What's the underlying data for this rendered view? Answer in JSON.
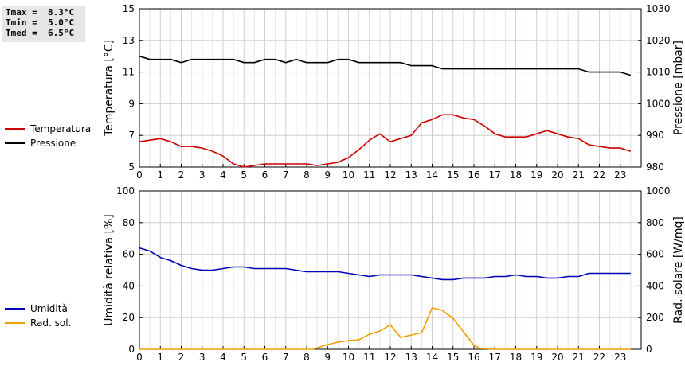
{
  "stats": {
    "tmax": "Tmax =  8.3°C",
    "tmin": "Tmin =  5.0°C",
    "tmed": "Tmed =  6.5°C"
  },
  "legend_top": [
    {
      "label": "Temperatura",
      "color": "#cc0000"
    },
    {
      "label": "Pressione",
      "color": "#000000"
    }
  ],
  "legend_bottom": [
    {
      "label": "Umidità",
      "color": "#0000bb"
    },
    {
      "label": "Rad. sol.",
      "color": "#f0a000"
    }
  ],
  "chart_data": [
    {
      "type": "line",
      "x_ticks": [
        "0",
        "1",
        "2",
        "3",
        "4",
        "5",
        "6",
        "7",
        "8",
        "9",
        "10",
        "11",
        "12",
        "13",
        "14",
        "15",
        "16",
        "17",
        "18",
        "19",
        "20",
        "21",
        "22",
        "23"
      ],
      "xlim": [
        0,
        24
      ],
      "ylabel": "Temperatura [°C]",
      "ylim": [
        5,
        15
      ],
      "y_ticks": [
        "5",
        "7",
        "9",
        "11",
        "13",
        "15"
      ],
      "y2label": "Pressione [mbar]",
      "y2lim": [
        980,
        1030
      ],
      "y2_ticks": [
        "980",
        "990",
        "1000",
        "1010",
        "1020",
        "1030"
      ],
      "grid": true,
      "series": [
        {
          "name": "Temperatura",
          "axis": "left",
          "color": "#cc0000",
          "x": [
            0,
            0.5,
            1,
            1.5,
            2,
            2.5,
            3,
            3.5,
            4,
            4.5,
            5,
            5.5,
            6,
            6.5,
            7,
            7.5,
            8,
            8.5,
            9,
            9.5,
            10,
            10.5,
            11,
            11.5,
            12,
            12.5,
            13,
            13.5,
            14,
            14.5,
            15,
            15.5,
            16,
            16.5,
            17,
            17.5,
            18,
            18.5,
            19,
            19.5,
            20,
            20.5,
            21,
            21.5,
            22,
            22.5,
            23,
            23.5
          ],
          "y": [
            6.6,
            6.7,
            6.8,
            6.6,
            6.3,
            6.3,
            6.2,
            6.0,
            5.7,
            5.2,
            5.0,
            5.1,
            5.2,
            5.2,
            5.2,
            5.2,
            5.2,
            5.1,
            5.2,
            5.3,
            5.6,
            6.1,
            6.7,
            7.1,
            6.6,
            6.8,
            7.0,
            7.8,
            8.0,
            8.3,
            8.3,
            8.1,
            8.0,
            7.6,
            7.1,
            6.9,
            6.9,
            6.9,
            7.1,
            7.3,
            7.1,
            6.9,
            6.8,
            6.4,
            6.3,
            6.2,
            6.2,
            6.0
          ]
        },
        {
          "name": "Pressione",
          "axis": "right",
          "color": "#000000",
          "x": [
            0,
            0.5,
            1,
            1.5,
            2,
            2.5,
            3,
            3.5,
            4,
            4.5,
            5,
            5.5,
            6,
            6.5,
            7,
            7.5,
            8,
            8.5,
            9,
            9.5,
            10,
            10.5,
            11,
            11.5,
            12,
            12.5,
            13,
            13.5,
            14,
            14.5,
            15,
            15.5,
            16,
            16.5,
            17,
            17.5,
            18,
            18.5,
            19,
            19.5,
            20,
            20.5,
            21,
            21.5,
            22,
            22.5,
            23,
            23.5
          ],
          "y": [
            1015,
            1014,
            1014,
            1014,
            1013,
            1014,
            1014,
            1014,
            1014,
            1014,
            1013,
            1013,
            1014,
            1014,
            1013,
            1014,
            1013,
            1013,
            1013,
            1014,
            1014,
            1013,
            1013,
            1013,
            1013,
            1013,
            1012,
            1012,
            1012,
            1011,
            1011,
            1011,
            1011,
            1011,
            1011,
            1011,
            1011,
            1011,
            1011,
            1011,
            1011,
            1011,
            1011,
            1010,
            1010,
            1010,
            1010,
            1009
          ]
        }
      ]
    },
    {
      "type": "line",
      "x_ticks": [
        "0",
        "1",
        "2",
        "3",
        "4",
        "5",
        "6",
        "7",
        "8",
        "9",
        "10",
        "11",
        "12",
        "13",
        "14",
        "15",
        "16",
        "17",
        "18",
        "19",
        "20",
        "21",
        "22",
        "23"
      ],
      "xlim": [
        0,
        24
      ],
      "ylabel": "Umidità relativa [%]",
      "ylim": [
        0,
        100
      ],
      "y_ticks": [
        "0",
        "20",
        "40",
        "60",
        "80",
        "100"
      ],
      "y2label": "Rad. solare [W/mq]",
      "y2lim": [
        0,
        1000
      ],
      "y2_ticks": [
        "0",
        "200",
        "400",
        "600",
        "800",
        "1000"
      ],
      "grid": true,
      "series": [
        {
          "name": "Umidità",
          "axis": "left",
          "color": "#0000bb",
          "x": [
            0,
            0.5,
            1,
            1.5,
            2,
            2.5,
            3,
            3.5,
            4,
            4.5,
            5,
            5.5,
            6,
            6.5,
            7,
            7.5,
            8,
            8.5,
            9,
            9.5,
            10,
            10.5,
            11,
            11.5,
            12,
            12.5,
            13,
            13.5,
            14,
            14.5,
            15,
            15.5,
            16,
            16.5,
            17,
            17.5,
            18,
            18.5,
            19,
            19.5,
            20,
            20.5,
            21,
            21.5,
            22,
            22.5,
            23,
            23.5
          ],
          "y": [
            64,
            62,
            58,
            56,
            53,
            51,
            50,
            50,
            51,
            52,
            52,
            51,
            51,
            51,
            51,
            50,
            49,
            49,
            49,
            49,
            48,
            47,
            46,
            47,
            47,
            47,
            47,
            46,
            45,
            44,
            44,
            45,
            45,
            45,
            46,
            46,
            47,
            46,
            46,
            45,
            45,
            46,
            46,
            48,
            48,
            48,
            48,
            48
          ]
        },
        {
          "name": "Rad. sol.",
          "axis": "right",
          "color": "#f0a000",
          "x": [
            0,
            1,
            2,
            3,
            4,
            5,
            6,
            7,
            8,
            8.3,
            9,
            9.5,
            10,
            10.5,
            11,
            11.5,
            12,
            12.5,
            13,
            13.5,
            14,
            14.5,
            15,
            15.5,
            16,
            16.3,
            17,
            18,
            19,
            20,
            21,
            22,
            23,
            23.5
          ],
          "y": [
            0,
            0,
            0,
            0,
            0,
            0,
            0,
            0,
            0,
            0,
            30,
            45,
            55,
            60,
            95,
            115,
            155,
            75,
            90,
            105,
            262,
            245,
            195,
            110,
            25,
            5,
            0,
            0,
            0,
            0,
            0,
            0,
            0,
            0
          ]
        }
      ]
    }
  ]
}
